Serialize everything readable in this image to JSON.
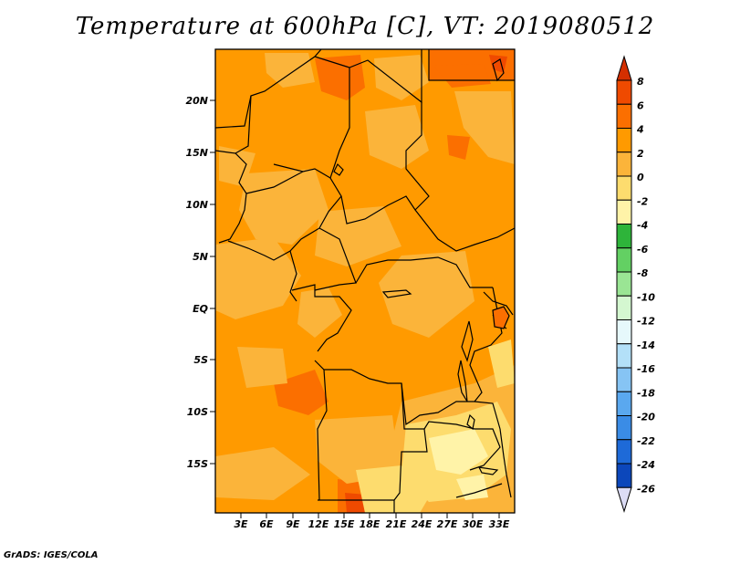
{
  "title": "Temperature at 600hPa [C], VT: 2019080512",
  "credit": "GrADS: IGES/COLA",
  "map": {
    "lat_labels": [
      "20N",
      "15N",
      "10N",
      "5N",
      "EQ",
      "5S",
      "10S",
      "15S"
    ],
    "lon_labels": [
      "3E",
      "6E",
      "9E",
      "12E",
      "15E",
      "18E",
      "21E",
      "24E",
      "27E",
      "30E",
      "33E"
    ]
  },
  "colorbar": {
    "labels": [
      "8",
      "6",
      "4",
      "2",
      "0",
      "-2",
      "-4",
      "-6",
      "-8",
      "-10",
      "-12",
      "-14",
      "-16",
      "-18",
      "-20",
      "-22",
      "-24",
      "-26"
    ],
    "colors": [
      "#d42f00",
      "#ef4a00",
      "#fb6f00",
      "#ff9a00",
      "#fbb43a",
      "#fddc6e",
      "#fff3a8",
      "#2eb43a",
      "#63d063",
      "#9ae594",
      "#d4f7d0",
      "#e6f8fb",
      "#b3e0f8",
      "#86c4f4",
      "#5aa8ef",
      "#3a8ce6",
      "#1e6ad8",
      "#0c47bb",
      "#0a2e95",
      "#0a1568",
      "#dcdcf5"
    ]
  }
}
